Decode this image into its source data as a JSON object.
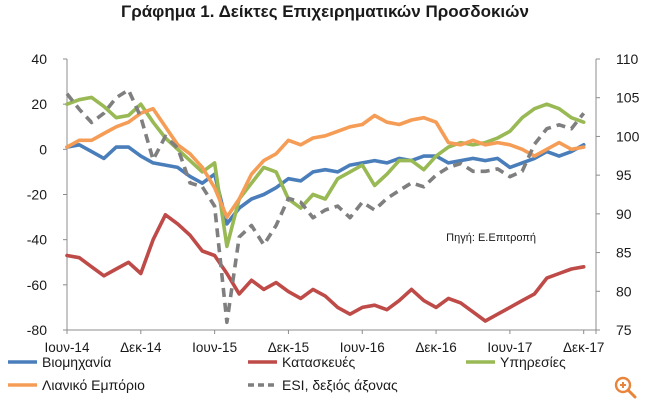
{
  "chart_data": {
    "type": "line",
    "title": "Γράφημα 1. Δείκτες Επιχειρηματικών Προσδοκιών",
    "annotation": "Πηγή: Ε.Επιτροπή",
    "x_tick_labels": [
      "Ιουν-14",
      "Δεκ-14",
      "Ιουν-15",
      "Δεκ-15",
      "Ιουν-16",
      "Δεκ-16",
      "Ιουν-17",
      "Δεκ-17"
    ],
    "x_range": [
      "Ιουν-14",
      "Ιαν-18"
    ],
    "left_axis": {
      "ylim": [
        -80,
        40
      ],
      "ticks": [
        "40",
        "20",
        "0",
        "-20",
        "-40",
        "-60",
        "-80"
      ]
    },
    "right_axis": {
      "ylim": [
        75,
        110
      ],
      "ticks": [
        "110",
        "105",
        "100",
        "95",
        "90",
        "85",
        "80",
        "75"
      ]
    },
    "grid": false,
    "legend_position": "bottom",
    "x_months_from_jun2014": [
      0,
      1,
      2,
      3,
      4,
      5,
      6,
      7,
      8,
      9,
      10,
      11,
      12,
      13,
      14,
      15,
      16,
      17,
      18,
      19,
      20,
      21,
      22,
      23,
      24,
      25,
      26,
      27,
      28,
      29,
      30,
      31,
      32,
      33,
      34,
      35,
      36,
      37,
      38,
      39,
      40,
      41,
      42
    ],
    "series": [
      {
        "name": "Βιομηχανία",
        "color": "#4a7ebb",
        "axis": "left",
        "values": [
          1,
          2,
          -1,
          -4,
          1,
          1,
          -3,
          -6,
          -7,
          -8,
          -12,
          -15,
          -11,
          -33,
          -26,
          -22,
          -20,
          -17,
          -13,
          -14,
          -10,
          -9,
          -10,
          -7,
          -6,
          -5,
          -6,
          -4,
          -5,
          -3,
          -3,
          -6,
          -5,
          -4,
          -5,
          -4,
          -8,
          -6,
          -4,
          -1,
          -3,
          -1,
          2
        ]
      },
      {
        "name": "Κατασκευές",
        "color": "#be4b48",
        "axis": "left",
        "values": [
          -47,
          -48,
          -52,
          -56,
          -53,
          -50,
          -55,
          -40,
          -29,
          -33,
          -38,
          -45,
          -47,
          -55,
          -64,
          -58,
          -62,
          -59,
          -63,
          -66,
          -62,
          -65,
          -70,
          -73,
          -70,
          -69,
          -71,
          -67,
          -62,
          -67,
          -70,
          -66,
          -68,
          -72,
          -76,
          -73,
          -70,
          -67,
          -64,
          -57,
          -55,
          -53,
          -52
        ]
      },
      {
        "name": "Υπηρεσίες",
        "color": "#98b954",
        "axis": "left",
        "values": [
          20,
          22,
          23,
          19,
          14,
          15,
          20,
          12,
          5,
          0,
          -5,
          -10,
          -6,
          -43,
          -22,
          -15,
          -8,
          -10,
          -22,
          -26,
          -20,
          -22,
          -13,
          -10,
          -7,
          -16,
          -11,
          -5,
          -5,
          -9,
          -3,
          1,
          3,
          2,
          3,
          5,
          8,
          14,
          18,
          20,
          18,
          14,
          12
        ]
      },
      {
        "name": "Λιανικό Εμπόριο",
        "color": "#f59d56",
        "axis": "left",
        "values": [
          1,
          4,
          4,
          7,
          10,
          12,
          16,
          18,
          10,
          2,
          -2,
          -8,
          -17,
          -30,
          -22,
          -11,
          -5,
          -2,
          4,
          2,
          5,
          6,
          8,
          10,
          11,
          15,
          12,
          11,
          13,
          14,
          12,
          3,
          2,
          4,
          2,
          3,
          2,
          0,
          -3,
          0,
          3,
          0,
          1
        ]
      },
      {
        "name": "ESI, δεξιός άξονας",
        "color": "#7f7f7f",
        "axis": "right",
        "dashed": true,
        "values": [
          105.5,
          103.5,
          101.8,
          103,
          105,
          106,
          102.5,
          97,
          100,
          98.5,
          94,
          93.5,
          91,
          76,
          87,
          88.5,
          86,
          88.5,
          92,
          91.5,
          89.5,
          90.5,
          91,
          89.5,
          91.5,
          90.5,
          92,
          93,
          94,
          93.5,
          95,
          96,
          96.5,
          95.5,
          95.5,
          95.8,
          94.8,
          95.5,
          99,
          101,
          101.5,
          101,
          103
        ]
      }
    ]
  },
  "ui": {
    "zoom_button_icon": "zoom-magnifier-icon"
  }
}
